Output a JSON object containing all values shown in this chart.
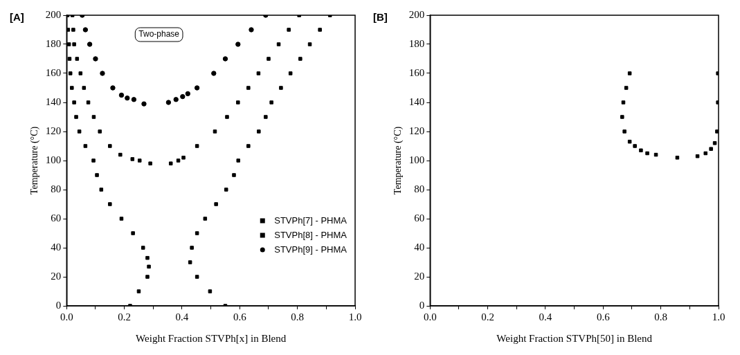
{
  "chart_data": [
    {
      "type": "scatter",
      "title": "[A]",
      "xlabel": "Weight Fraction STVPh[x] in Blend",
      "ylabel": "Temperature (°C)",
      "xlim": [
        0,
        1
      ],
      "ylim": [
        0,
        200
      ],
      "xticks": [
        {
          "value": 0,
          "label": "0.0"
        },
        {
          "value": 0.1,
          "label": null
        },
        {
          "value": 0.2,
          "label": "0.2"
        },
        {
          "value": 0.3,
          "label": null
        },
        {
          "value": 0.4,
          "label": "0.4"
        },
        {
          "value": 0.5,
          "label": null
        },
        {
          "value": 0.6,
          "label": "0.6"
        },
        {
          "value": 0.7,
          "label": null
        },
        {
          "value": 0.8,
          "label": "0.8"
        },
        {
          "value": 0.9,
          "label": null
        },
        {
          "value": 1,
          "label": "1.0"
        }
      ],
      "yticks": [
        0,
        20,
        40,
        60,
        80,
        100,
        120,
        140,
        160,
        180,
        200
      ],
      "grid": false,
      "legend": "bottom right",
      "annotations": [
        "Two-phase"
      ],
      "series": [
        {
          "name": "STVPh[7] - PHMA",
          "color": "#000000",
          "marker": "square",
          "x": [
            0.003,
            0.005,
            0.008,
            0.01,
            0.013,
            0.018,
            0.026,
            0.033,
            0.044,
            0.065,
            0.093,
            0.105,
            0.12,
            0.15,
            0.19,
            0.23,
            0.265,
            0.28,
            0.285,
            0.28,
            0.25,
            0.22,
            0.55,
            0.497,
            0.452,
            0.428,
            0.434,
            0.452,
            0.48,
            0.518,
            0.553,
            0.58,
            0.595,
            0.63,
            0.666,
            0.69,
            0.71,
            0.743,
            0.776,
            0.81,
            0.843,
            0.878,
            0.913
          ],
          "values": [
            200,
            190,
            180,
            170,
            160,
            150,
            140,
            130,
            120,
            110,
            100,
            90,
            80,
            70,
            60,
            50,
            40,
            33,
            27,
            20,
            10,
            0,
            0,
            10,
            20,
            30,
            40,
            50,
            60,
            70,
            80,
            90,
            100,
            110,
            120,
            130,
            140,
            150,
            160,
            170,
            180,
            190,
            200
          ]
        },
        {
          "name": "STVPh[8] - PHMA",
          "color": "#000000",
          "marker": "square",
          "x": [
            0.02,
            0.023,
            0.026,
            0.036,
            0.048,
            0.06,
            0.075,
            0.094,
            0.115,
            0.15,
            0.186,
            0.228,
            0.253,
            0.29,
            0.361,
            0.387,
            0.405,
            0.452,
            0.514,
            0.556,
            0.594,
            0.63,
            0.665,
            0.7,
            0.735,
            0.77,
            0.806
          ],
          "values": [
            200,
            190,
            180,
            170,
            160,
            150,
            140,
            130,
            120,
            110,
            104,
            101,
            100,
            98,
            98,
            100,
            102,
            110,
            120,
            130,
            140,
            150,
            160,
            170,
            180,
            190,
            200
          ]
        },
        {
          "name": "STVPh[9] - PHMA",
          "color": "#000000",
          "marker": "circle",
          "x": [
            0.054,
            0.065,
            0.08,
            0.1,
            0.124,
            0.16,
            0.19,
            0.21,
            0.233,
            0.268,
            0.353,
            0.379,
            0.402,
            0.42,
            0.452,
            0.51,
            0.55,
            0.594,
            0.64,
            0.69
          ],
          "values": [
            200,
            190,
            180,
            170,
            160,
            150,
            145,
            143,
            142,
            139,
            140,
            142,
            144,
            146,
            150,
            160,
            170,
            180,
            190,
            200
          ]
        }
      ]
    },
    {
      "type": "scatter",
      "title": "[B]",
      "xlabel": "Weight Fraction STVPh[50] in Blend",
      "ylabel": "Temperature (°C)",
      "xlim": [
        0,
        1
      ],
      "ylim": [
        0,
        200
      ],
      "xticks": [
        {
          "value": 0,
          "label": "0.0"
        },
        {
          "value": 0.1,
          "label": null
        },
        {
          "value": 0.2,
          "label": "0.2"
        },
        {
          "value": 0.3,
          "label": null
        },
        {
          "value": 0.4,
          "label": "0.4"
        },
        {
          "value": 0.5,
          "label": null
        },
        {
          "value": 0.6,
          "label": "0.6"
        },
        {
          "value": 0.7,
          "label": null
        },
        {
          "value": 0.8,
          "label": "0.8"
        },
        {
          "value": 0.9,
          "label": null
        },
        {
          "value": 1,
          "label": "1.0"
        }
      ],
      "yticks": [
        0,
        20,
        40,
        60,
        80,
        100,
        120,
        140,
        160,
        180,
        200
      ],
      "grid": false,
      "series": [
        {
          "color": "#000000",
          "marker": "square",
          "x": [
            0.692,
            0.68,
            0.67,
            0.666,
            0.674,
            0.692,
            0.71,
            0.731,
            0.753,
            0.783,
            0.857,
            0.927,
            0.955,
            0.974,
            0.987,
            0.995,
            0.998,
            0.998
          ],
          "values": [
            160,
            150,
            140,
            130,
            120,
            113,
            110,
            107,
            105,
            104,
            102,
            103,
            105,
            108,
            112,
            120,
            140,
            160
          ]
        }
      ]
    }
  ]
}
